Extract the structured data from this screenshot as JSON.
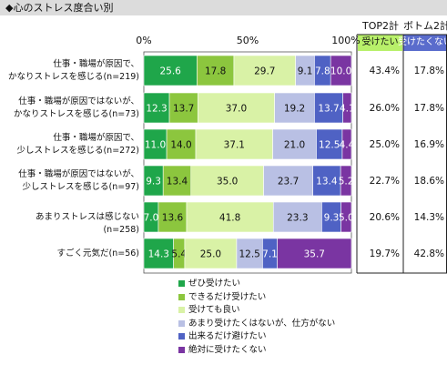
{
  "title": "◆心のストレス度合い別",
  "columns": {
    "top2_header": "TOP2計",
    "bottom2_header": "ボトム2計",
    "top2_sub": "受けたい",
    "bottom2_sub": "受けたくない",
    "top2_color": "#b8f06a",
    "bottom2_color": "#5a6ccc"
  },
  "chart_data": {
    "type": "bar",
    "orientation": "horizontal-stacked-100",
    "categories": [
      [
        "仕事・職場が原因で、",
        "かなりストレスを感じる(n=219)"
      ],
      [
        "仕事・職場が原因ではないが、",
        "かなりストレスを感じる(n=73)"
      ],
      [
        "仕事・職場が原因で、",
        "少しストレスを感じる(n=272)"
      ],
      [
        "仕事・職場が原因ではないが、",
        "少しストレスを感じる(n=97)"
      ],
      [
        "あまりストレスは感じない(n=258)"
      ],
      [
        "すごく元気だ(n=56)"
      ]
    ],
    "series": [
      {
        "name": "ぜひ受けたい",
        "color": "#1fa64a",
        "values": [
          25.6,
          12.3,
          11.0,
          9.3,
          7.0,
          14.3
        ],
        "labels": [
          "25.6",
          "12.3",
          "11.0",
          "9.3",
          "7.0",
          "14.3"
        ]
      },
      {
        "name": "できるだけ受けたい",
        "color": "#8cc63e",
        "values": [
          17.8,
          13.7,
          14.0,
          13.4,
          13.6,
          5.4
        ],
        "labels": [
          "17.8",
          "13.7",
          "14.0",
          "13.4",
          "13.6",
          "5.4"
        ]
      },
      {
        "name": "受けても良い",
        "color": "#d9f2a6",
        "values": [
          29.7,
          37.0,
          37.1,
          35.0,
          41.8,
          25.0
        ],
        "labels": [
          "29.7",
          "37.0",
          "37.1",
          "35.0",
          "41.8",
          "25.0"
        ]
      },
      {
        "name": "あまり受けたくはないが、仕方がない",
        "color": "#b9c0e4",
        "values": [
          9.1,
          19.2,
          21.0,
          23.7,
          23.3,
          12.5
        ],
        "labels": [
          "9.1",
          "19.2",
          "21.0",
          "23.7",
          "23.3",
          "12.5"
        ]
      },
      {
        "name": "出来るだけ避けたい",
        "color": "#4f62c4",
        "values": [
          7.8,
          13.7,
          12.5,
          13.4,
          9.3,
          7.1
        ],
        "labels": [
          "7.8",
          "13.7",
          "12.5",
          "13.4",
          "9.3",
          "7.1"
        ]
      },
      {
        "name": "絶対に受けたくない",
        "color": "#7a35a2",
        "values": [
          10.0,
          4.1,
          4.4,
          5.2,
          5.0,
          35.7
        ],
        "labels": [
          "10.0",
          "4.1",
          "4.4",
          "5.2",
          "5.0",
          "35.7"
        ]
      }
    ],
    "top2": [
      "43.4%",
      "26.0%",
      "25.0%",
      "22.7%",
      "20.6%",
      "19.7%"
    ],
    "bottom2": [
      "17.8%",
      "17.8%",
      "16.9%",
      "18.6%",
      "14.3%",
      "42.8%"
    ],
    "xlim": [
      0,
      100
    ],
    "xticks": [
      "0%",
      "50%",
      "100%"
    ],
    "legend_position": "bottom"
  }
}
